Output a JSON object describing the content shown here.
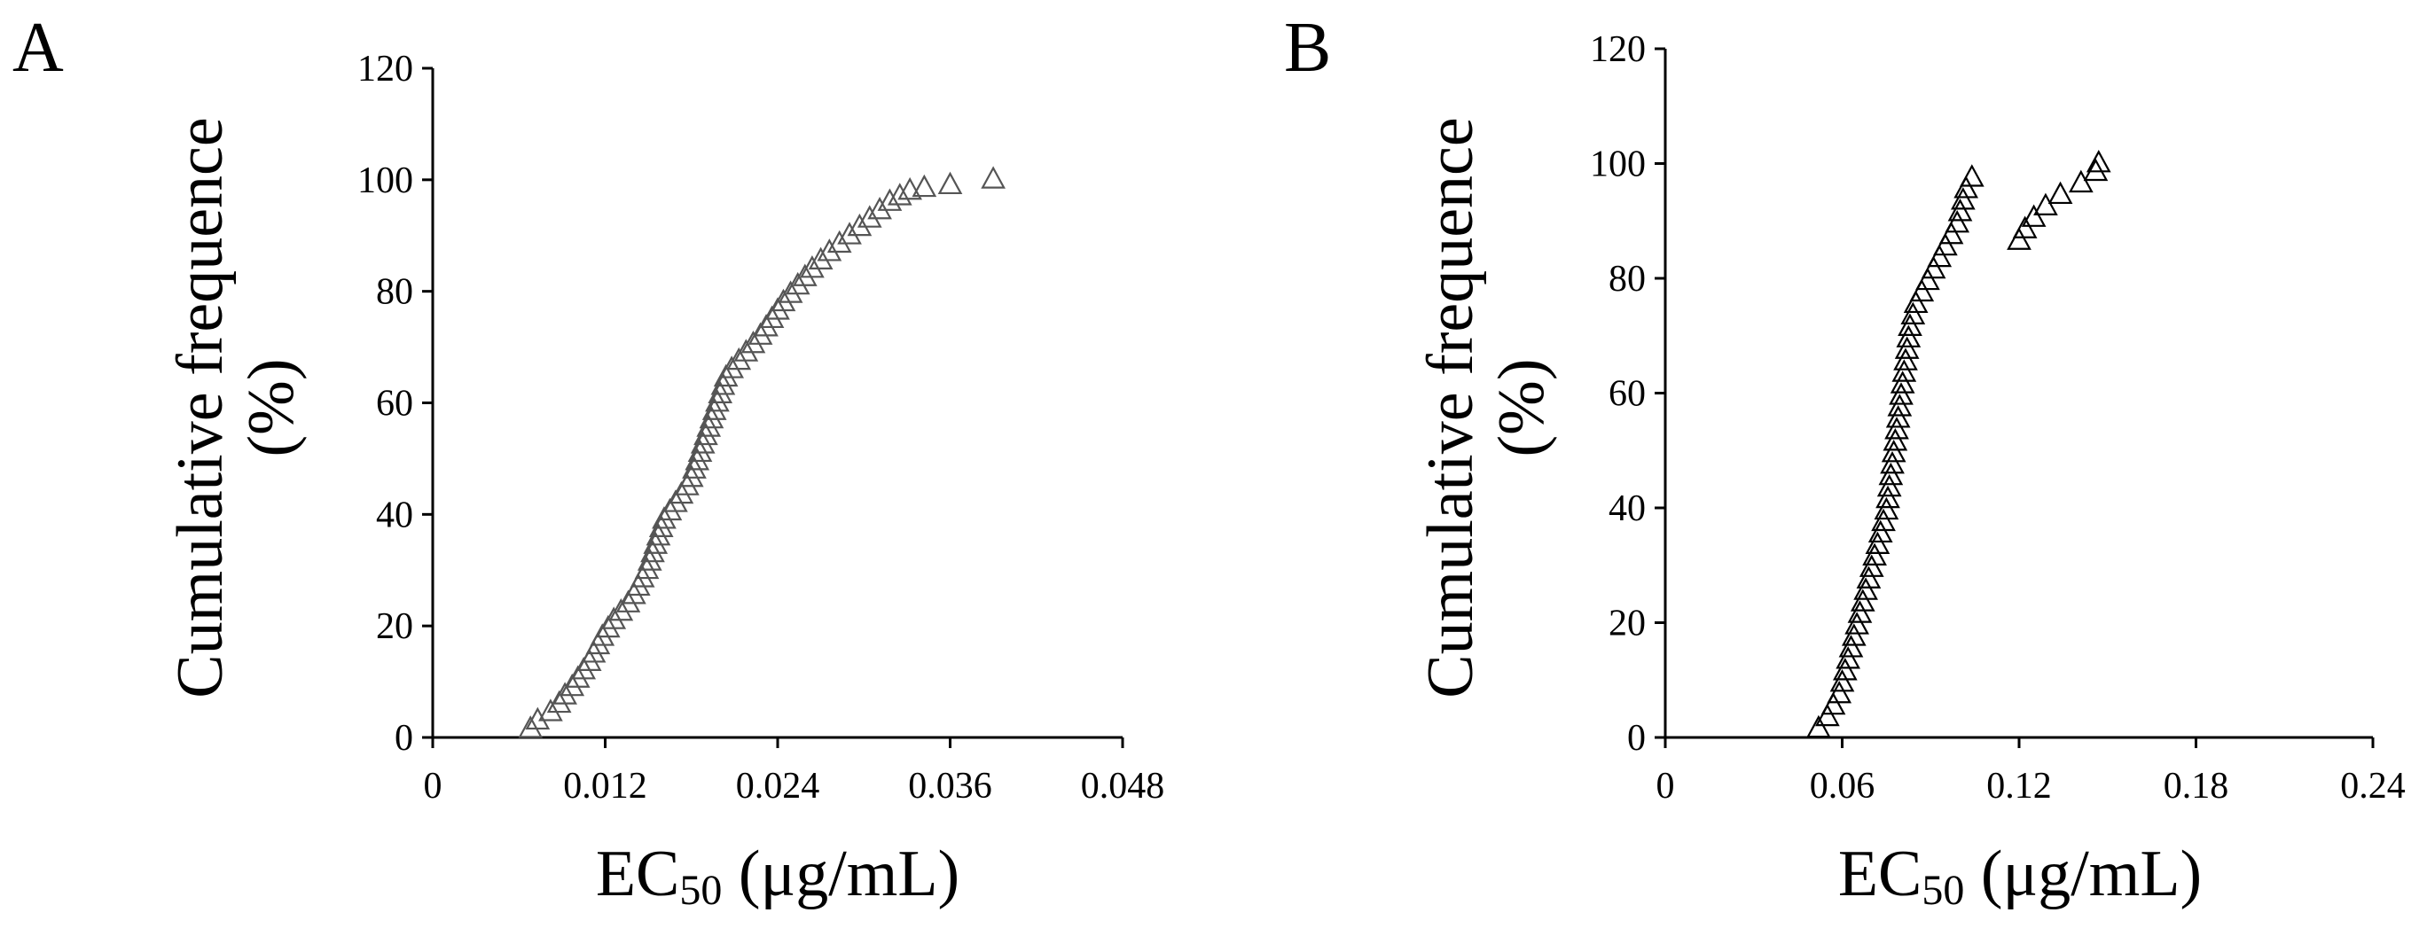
{
  "chart_data": [
    {
      "type": "scatter",
      "panel_label": "A",
      "ylabel_lines": [
        "Cumulative frequence",
        "(%)"
      ],
      "xlabel": {
        "prefix": "EC",
        "subscript": "50",
        "suffix": " (μg/mL)"
      },
      "xlim": [
        0,
        0.048
      ],
      "ylim": [
        0,
        120
      ],
      "xticks": [
        0,
        0.012,
        0.024,
        0.036,
        0.048
      ],
      "xtick_labels": [
        "0",
        "0.012",
        "0.024",
        "0.036",
        "0.048"
      ],
      "yticks": [
        0,
        20,
        40,
        60,
        80,
        100,
        120
      ],
      "ytick_labels": [
        "0",
        "20",
        "40",
        "60",
        "80",
        "100",
        "120"
      ],
      "marker": "open-triangle",
      "marker_color": "#555555",
      "grid": false,
      "series": [
        {
          "name": "Cumulative frequency",
          "x": [
            0.0068,
            0.0073,
            0.0082,
            0.0088,
            0.0092,
            0.0097,
            0.0101,
            0.0105,
            0.0109,
            0.0112,
            0.0115,
            0.0118,
            0.0122,
            0.0126,
            0.0131,
            0.0136,
            0.014,
            0.0143,
            0.0146,
            0.0149,
            0.0151,
            0.0153,
            0.0155,
            0.0157,
            0.0159,
            0.0161,
            0.0165,
            0.0169,
            0.0173,
            0.0177,
            0.018,
            0.0182,
            0.0184,
            0.0186,
            0.0188,
            0.019,
            0.0192,
            0.0194,
            0.0196,
            0.0198,
            0.02,
            0.0202,
            0.0204,
            0.0208,
            0.0213,
            0.0218,
            0.0223,
            0.0228,
            0.0232,
            0.0236,
            0.024,
            0.0244,
            0.0249,
            0.0254,
            0.0259,
            0.0264,
            0.027,
            0.0276,
            0.0283,
            0.029,
            0.0297,
            0.0304,
            0.0311,
            0.0318,
            0.0325,
            0.0332,
            0.0342,
            0.036,
            0.039
          ],
          "y": [
            1.5,
            3,
            4.5,
            6,
            7.5,
            9,
            10.5,
            12,
            13.5,
            15,
            16.5,
            18,
            19.5,
            21,
            22.5,
            24,
            25.5,
            27,
            28.5,
            30,
            31.5,
            33,
            34.5,
            36,
            37.5,
            39,
            40.5,
            42,
            43.5,
            45,
            46.5,
            48,
            49.5,
            51,
            52.5,
            54,
            55.5,
            57,
            58.5,
            60,
            61.5,
            63,
            64.5,
            66,
            67.5,
            69,
            70.5,
            72,
            73.5,
            75,
            76.5,
            78,
            79.5,
            81,
            82.5,
            84,
            85.5,
            87,
            88.5,
            90,
            91.5,
            93,
            94.5,
            96,
            97,
            98,
            98.5,
            99,
            100
          ]
        }
      ]
    },
    {
      "type": "scatter",
      "panel_label": "B",
      "ylabel_lines": [
        "Cumulative frequence",
        "(%)"
      ],
      "xlabel": {
        "prefix": "EC",
        "subscript": "50",
        "suffix": " (μg/mL)"
      },
      "xlim": [
        0,
        0.24
      ],
      "ylim": [
        0,
        120
      ],
      "xticks": [
        0,
        0.06,
        0.12,
        0.18,
        0.24
      ],
      "xtick_labels": [
        "0",
        "0.06",
        "0.12",
        "0.18",
        "0.24"
      ],
      "yticks": [
        0,
        20,
        40,
        60,
        80,
        100,
        120
      ],
      "ytick_labels": [
        "0",
        "20",
        "40",
        "60",
        "80",
        "100",
        "120"
      ],
      "marker": "open-triangle",
      "marker_color": "#000000",
      "grid": false,
      "series": [
        {
          "name": "Cumulative frequency",
          "x": [
            0.052,
            0.055,
            0.057,
            0.059,
            0.06,
            0.061,
            0.062,
            0.063,
            0.064,
            0.065,
            0.066,
            0.067,
            0.068,
            0.069,
            0.07,
            0.071,
            0.072,
            0.073,
            0.074,
            0.075,
            0.0755,
            0.076,
            0.0765,
            0.077,
            0.0775,
            0.078,
            0.0785,
            0.079,
            0.0795,
            0.08,
            0.0805,
            0.081,
            0.0815,
            0.082,
            0.0825,
            0.083,
            0.084,
            0.085,
            0.087,
            0.089,
            0.091,
            0.093,
            0.095,
            0.097,
            0.099,
            0.1,
            0.101,
            0.102,
            0.104,
            0.12,
            0.122,
            0.125,
            0.129,
            0.134,
            0.141,
            0.146,
            0.147
          ],
          "y": [
            1.5,
            3.5,
            5.5,
            7.5,
            9.5,
            11.5,
            13.5,
            15.5,
            17.5,
            19.5,
            21.5,
            23.5,
            25.5,
            27.5,
            29.5,
            31.5,
            33.5,
            35.5,
            37.5,
            39.5,
            41.5,
            43.5,
            45.5,
            47.5,
            49.5,
            51.5,
            53.5,
            55.5,
            57.5,
            59.5,
            61.5,
            63.5,
            65.5,
            67.5,
            69.5,
            71.5,
            73.5,
            75.5,
            77.5,
            79.5,
            81.5,
            83.5,
            85.5,
            87.5,
            89.5,
            91.5,
            93.5,
            95.5,
            97.5,
            86.5,
            88.5,
            90.5,
            92.5,
            94.5,
            96.5,
            98.5,
            100
          ]
        }
      ]
    }
  ]
}
